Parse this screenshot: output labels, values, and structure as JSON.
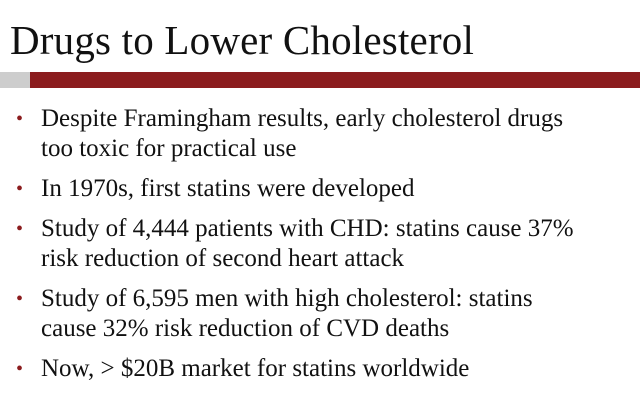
{
  "title": "Drugs to Lower Cholesterol",
  "colors": {
    "accent_bar": "#8b1c1e",
    "accent_stub": "#cdcdcd",
    "bullet": "#8b1c1e",
    "text": "#111111",
    "background": "#ffffff"
  },
  "bullet_symbol": "•",
  "bullets": [
    {
      "lines": [
        "Despite Framingham results, early cholesterol drugs",
        "too toxic for practical use"
      ]
    },
    {
      "lines": [
        "In 1970s, first statins were developed"
      ]
    },
    {
      "lines": [
        "Study of 4,444 patients with CHD: statins cause 37%",
        "risk reduction of  second heart attack"
      ]
    },
    {
      "lines": [
        "Study of 6,595 men with high cholesterol: statins",
        "cause 32% risk reduction of CVD deaths"
      ]
    },
    {
      "lines": [
        "Now, > $20B market for statins worldwide"
      ]
    }
  ]
}
